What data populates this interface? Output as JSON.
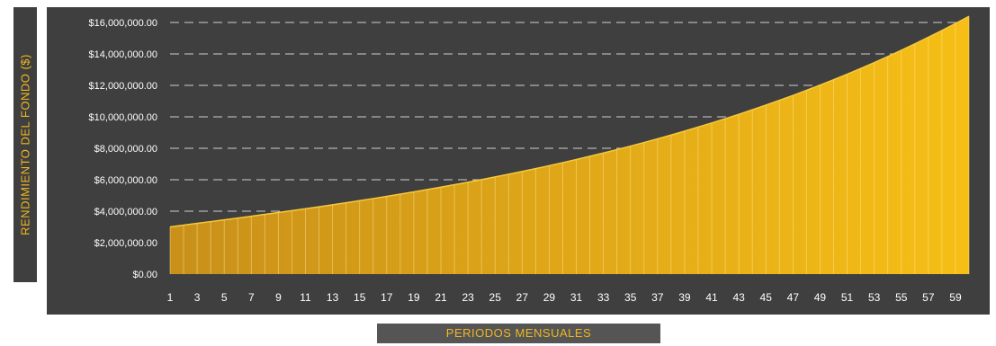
{
  "chart_data": {
    "type": "area",
    "xlabel": "PERIODOS MENSUALES",
    "ylabel": "RENDIMIENTO DEL FONDO ($)",
    "ylim": [
      0,
      16000000
    ],
    "yticks": [
      0,
      2000000,
      4000000,
      6000000,
      8000000,
      10000000,
      12000000,
      14000000,
      16000000
    ],
    "ytick_labels": [
      "$0.00",
      "$2,000,000.00",
      "$4,000,000.00",
      "$6,000,000.00",
      "$8,000,000.00",
      "$10,000,000.00",
      "$12,000,000.00",
      "$14,000,000.00",
      "$16,000,000.00"
    ],
    "xtick_labels": [
      "1",
      "3",
      "5",
      "7",
      "9",
      "11",
      "13",
      "15",
      "17",
      "19",
      "21",
      "23",
      "25",
      "27",
      "29",
      "31",
      "33",
      "35",
      "37",
      "39",
      "41",
      "43",
      "45",
      "47",
      "49",
      "51",
      "53",
      "55",
      "57",
      "59"
    ],
    "x": [
      1,
      2,
      3,
      4,
      5,
      6,
      7,
      8,
      9,
      10,
      11,
      12,
      13,
      14,
      15,
      16,
      17,
      18,
      19,
      20,
      21,
      22,
      23,
      24,
      25,
      26,
      27,
      28,
      29,
      30,
      31,
      32,
      33,
      34,
      35,
      36,
      37,
      38,
      39,
      40,
      41,
      42,
      43,
      44,
      45,
      46,
      47,
      48,
      49,
      50,
      51,
      52,
      53,
      54,
      55,
      56,
      57,
      58,
      59,
      60
    ],
    "values": [
      3000000,
      3113000,
      3226000,
      3339000,
      3452000,
      3566000,
      3681000,
      3797000,
      3915000,
      4035000,
      4157000,
      4281000,
      4408000,
      4537000,
      4669000,
      4804000,
      4942000,
      5083000,
      5228000,
      5376000,
      5528000,
      5684000,
      5844000,
      6008000,
      6176000,
      6349000,
      6527000,
      6709000,
      6897000,
      7090000,
      7288000,
      7492000,
      7701000,
      7917000,
      8139000,
      8367000,
      8602000,
      8844000,
      9093000,
      9349000,
      9612000,
      9883000,
      10162000,
      10449000,
      10745000,
      11049000,
      11363000,
      11686000,
      12018000,
      12360000,
      12713000,
      13076000,
      13449000,
      13834000,
      14230000,
      14638000,
      15058000,
      15491000,
      15936000,
      16394000
    ],
    "grid": true,
    "legend": "none",
    "colors": {
      "fill": "#f0b81e",
      "background": "#3f3f3f",
      "grid": "#cfcfcf",
      "label": "#f0b81e"
    }
  }
}
